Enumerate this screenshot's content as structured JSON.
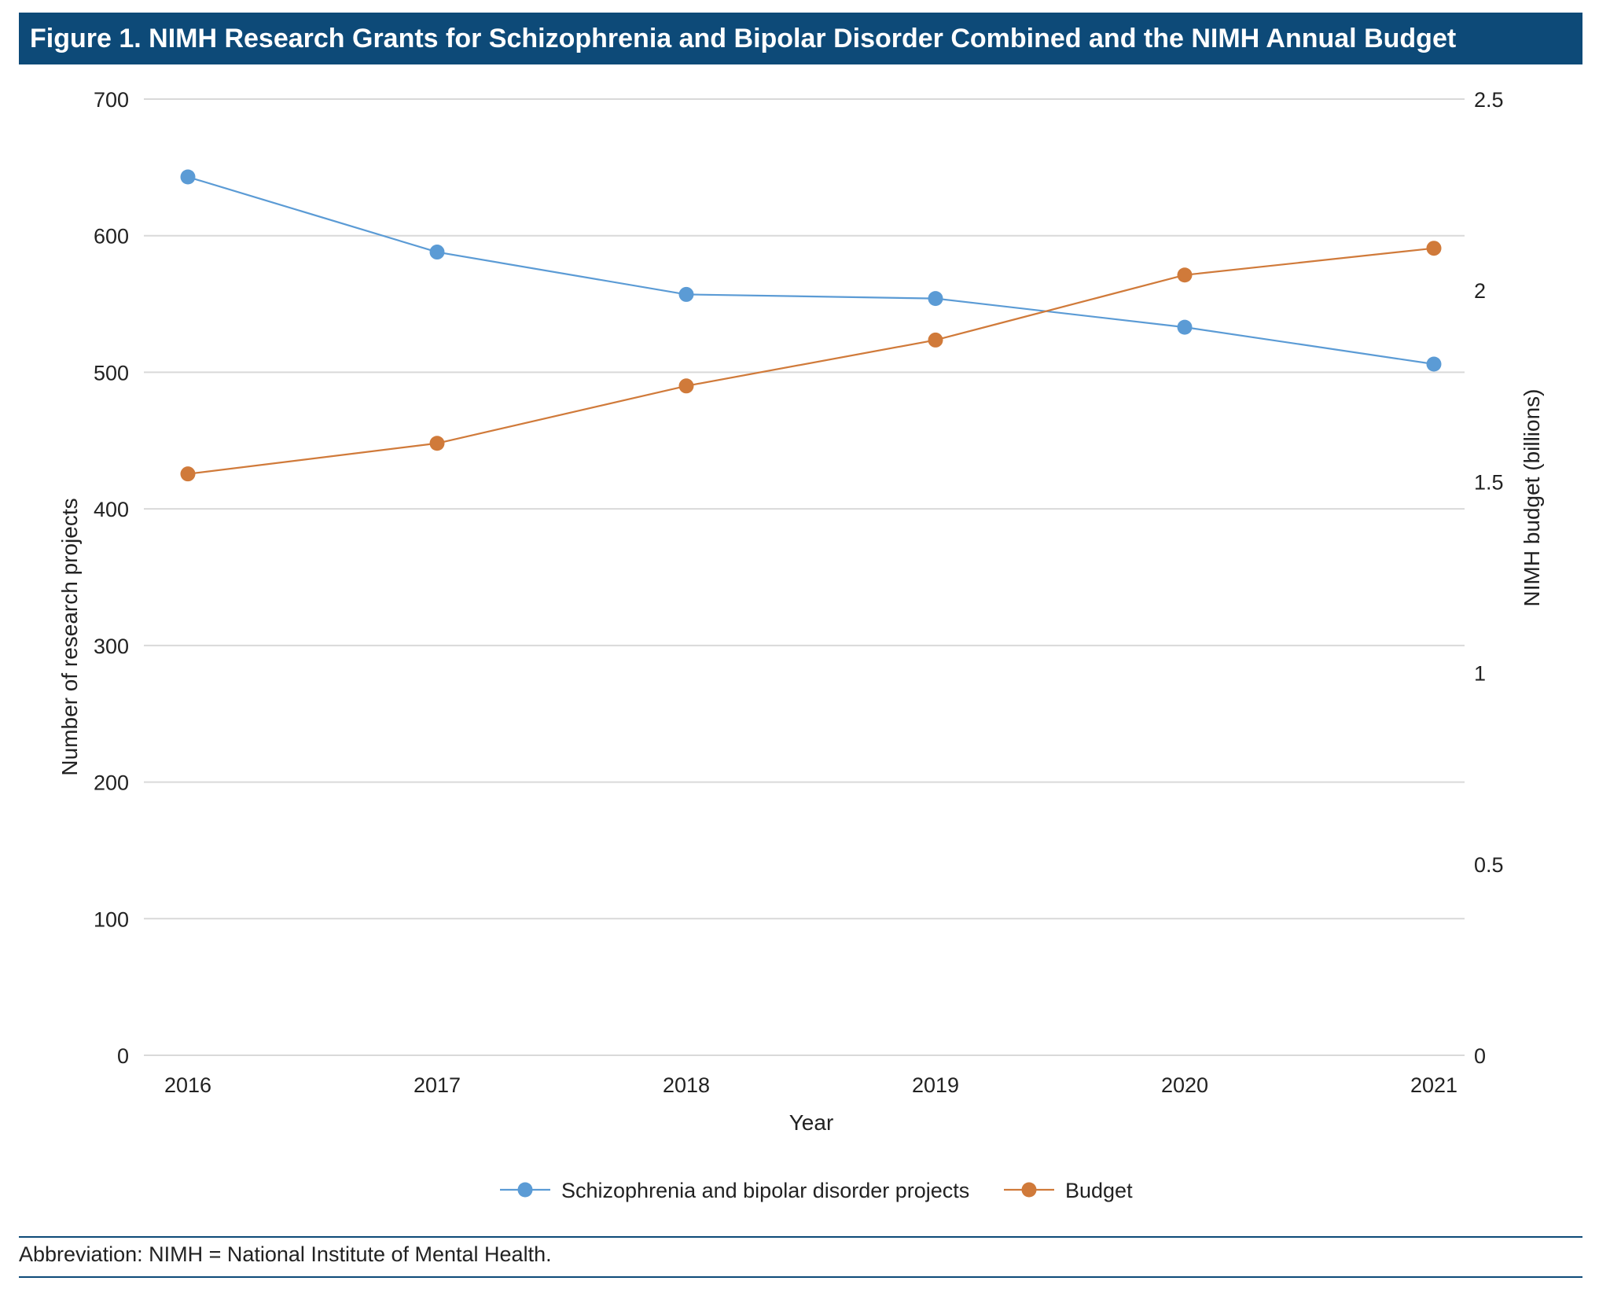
{
  "title": "Figure 1. NIMH Research Grants for Schizophrenia and Bipolar Disorder Combined and the NIMH Annual Budget",
  "footnote": "Abbreviation: NIMH = National Institute of Mental Health.",
  "chart_data": {
    "type": "line",
    "categories": [
      "2016",
      "2017",
      "2018",
      "2019",
      "2020",
      "2021"
    ],
    "xlabel": "Year",
    "ylabel": "Number of research projects",
    "y2label": "NIMH budget (billions)",
    "ylim": [
      0,
      700
    ],
    "y2lim": [
      0,
      2.5
    ],
    "yticks": [
      "0",
      "100",
      "200",
      "300",
      "400",
      "500",
      "600",
      "700"
    ],
    "y2ticks": [
      "0",
      "0.5",
      "1",
      "1.5",
      "2",
      "2.5"
    ],
    "grid": true,
    "legend_position": "bottom",
    "series": [
      {
        "name": "Schizophrenia and bipolar disorder projects",
        "axis": "left",
        "color": "#5b9bd5",
        "values": [
          643,
          588,
          557,
          554,
          533,
          506
        ]
      },
      {
        "name": "Budget",
        "axis": "right",
        "color": "#d07a3a",
        "values": [
          1.52,
          1.6,
          1.75,
          1.87,
          2.04,
          2.11
        ]
      }
    ]
  }
}
